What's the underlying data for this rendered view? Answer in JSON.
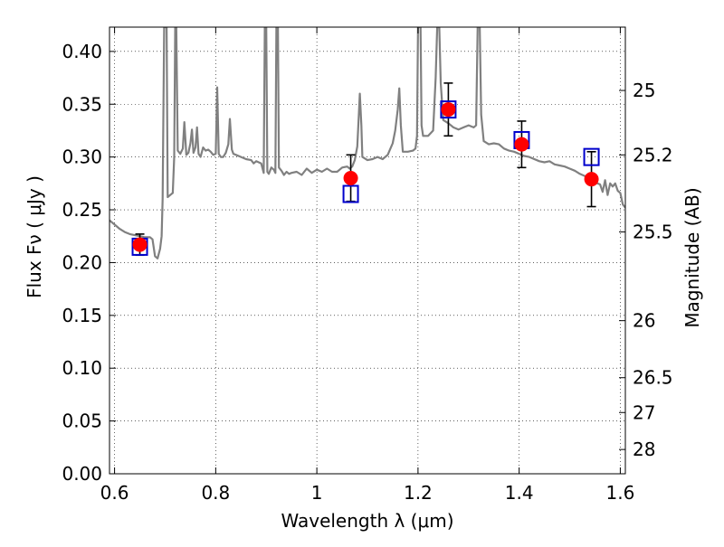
{
  "chart_data": {
    "type": "scatter",
    "title": "",
    "xlabel": "Wavelength  λ (μm)",
    "ylabel": "Flux  Fν  ( μJy )",
    "y2label": "Magnitude (AB)",
    "xlim": [
      0.59,
      1.61
    ],
    "ylim": [
      0.0,
      0.423
    ],
    "xticks": [
      0.6,
      0.8,
      1.0,
      1.2,
      1.4,
      1.6
    ],
    "xticklabels": [
      "0.6",
      "0.8",
      "1",
      "1.2",
      "1.4",
      "1.6"
    ],
    "yticks": [
      0.0,
      0.05,
      0.1,
      0.15,
      0.2,
      0.25,
      0.3,
      0.35,
      0.4
    ],
    "yticklabels": [
      "0.00",
      "0.05",
      "0.10",
      "0.15",
      "0.20",
      "0.25",
      "0.30",
      "0.35",
      "0.40"
    ],
    "y2ticks": [
      {
        "label": "25",
        "flux": 0.363
      },
      {
        "label": "25.2",
        "flux": 0.302
      },
      {
        "label": "25.5",
        "flux": 0.229
      },
      {
        "label": "26",
        "flux": 0.145
      },
      {
        "label": "26.5",
        "flux": 0.091
      },
      {
        "label": "27",
        "flux": 0.058
      },
      {
        "label": "28",
        "flux": 0.023
      }
    ],
    "grid": true,
    "observed": {
      "color": "#ff0000",
      "points": [
        {
          "x": 0.65,
          "y": 0.217,
          "err": 0.01
        },
        {
          "x": 1.067,
          "y": 0.28,
          "err": 0.022
        },
        {
          "x": 1.26,
          "y": 0.345,
          "err": 0.025
        },
        {
          "x": 1.405,
          "y": 0.312,
          "err": 0.022
        },
        {
          "x": 1.543,
          "y": 0.279,
          "err": 0.026
        }
      ]
    },
    "model": {
      "color": "#0000cc",
      "points": [
        {
          "x": 0.65,
          "y": 0.215
        },
        {
          "x": 1.067,
          "y": 0.265
        },
        {
          "x": 1.26,
          "y": 0.345
        },
        {
          "x": 1.405,
          "y": 0.316
        },
        {
          "x": 1.543,
          "y": 0.3
        }
      ]
    },
    "spectrum": {
      "color": "#808080",
      "points": [
        [
          0.59,
          0.24
        ],
        [
          0.6,
          0.236
        ],
        [
          0.61,
          0.232
        ],
        [
          0.62,
          0.229
        ],
        [
          0.63,
          0.227
        ],
        [
          0.64,
          0.226
        ],
        [
          0.65,
          0.225
        ],
        [
          0.66,
          0.224
        ],
        [
          0.67,
          0.224
        ],
        [
          0.675,
          0.222
        ],
        [
          0.68,
          0.206
        ],
        [
          0.685,
          0.204
        ],
        [
          0.69,
          0.213
        ],
        [
          0.693,
          0.225
        ],
        [
          0.695,
          0.26
        ],
        [
          0.698,
          0.423
        ],
        [
          0.703,
          0.423
        ],
        [
          0.705,
          0.262
        ],
        [
          0.71,
          0.264
        ],
        [
          0.715,
          0.266
        ],
        [
          0.718,
          0.3
        ],
        [
          0.72,
          0.423
        ],
        [
          0.722,
          0.423
        ],
        [
          0.725,
          0.306
        ],
        [
          0.73,
          0.303
        ],
        [
          0.735,
          0.308
        ],
        [
          0.738,
          0.333
        ],
        [
          0.742,
          0.302
        ],
        [
          0.746,
          0.304
        ],
        [
          0.75,
          0.313
        ],
        [
          0.753,
          0.326
        ],
        [
          0.756,
          0.304
        ],
        [
          0.76,
          0.309
        ],
        [
          0.763,
          0.328
        ],
        [
          0.766,
          0.303
        ],
        [
          0.77,
          0.3
        ],
        [
          0.775,
          0.309
        ],
        [
          0.78,
          0.306
        ],
        [
          0.785,
          0.307
        ],
        [
          0.79,
          0.305
        ],
        [
          0.795,
          0.302
        ],
        [
          0.8,
          0.303
        ],
        [
          0.803,
          0.366
        ],
        [
          0.806,
          0.303
        ],
        [
          0.81,
          0.3
        ],
        [
          0.815,
          0.3
        ],
        [
          0.82,
          0.304
        ],
        [
          0.825,
          0.312
        ],
        [
          0.828,
          0.336
        ],
        [
          0.832,
          0.307
        ],
        [
          0.835,
          0.303
        ],
        [
          0.84,
          0.302
        ],
        [
          0.85,
          0.3
        ],
        [
          0.86,
          0.298
        ],
        [
          0.87,
          0.297
        ],
        [
          0.875,
          0.294
        ],
        [
          0.88,
          0.296
        ],
        [
          0.89,
          0.294
        ],
        [
          0.895,
          0.285
        ],
        [
          0.897,
          0.423
        ],
        [
          0.9,
          0.423
        ],
        [
          0.902,
          0.286
        ],
        [
          0.905,
          0.284
        ],
        [
          0.91,
          0.29
        ],
        [
          0.915,
          0.288
        ],
        [
          0.918,
          0.285
        ],
        [
          0.92,
          0.423
        ],
        [
          0.923,
          0.423
        ],
        [
          0.925,
          0.29
        ],
        [
          0.93,
          0.287
        ],
        [
          0.935,
          0.283
        ],
        [
          0.94,
          0.286
        ],
        [
          0.945,
          0.284
        ],
        [
          0.95,
          0.285
        ],
        [
          0.96,
          0.286
        ],
        [
          0.97,
          0.283
        ],
        [
          0.98,
          0.289
        ],
        [
          0.99,
          0.285
        ],
        [
          1.0,
          0.288
        ],
        [
          1.01,
          0.286
        ],
        [
          1.02,
          0.289
        ],
        [
          1.03,
          0.286
        ],
        [
          1.04,
          0.286
        ],
        [
          1.05,
          0.29
        ],
        [
          1.06,
          0.291
        ],
        [
          1.065,
          0.289
        ],
        [
          1.07,
          0.291
        ],
        [
          1.075,
          0.297
        ],
        [
          1.08,
          0.31
        ],
        [
          1.083,
          0.34
        ],
        [
          1.085,
          0.36
        ],
        [
          1.088,
          0.33
        ],
        [
          1.09,
          0.3
        ],
        [
          1.1,
          0.297
        ],
        [
          1.11,
          0.298
        ],
        [
          1.12,
          0.3
        ],
        [
          1.13,
          0.298
        ],
        [
          1.14,
          0.302
        ],
        [
          1.15,
          0.313
        ],
        [
          1.155,
          0.325
        ],
        [
          1.16,
          0.345
        ],
        [
          1.163,
          0.365
        ],
        [
          1.166,
          0.33
        ],
        [
          1.17,
          0.305
        ],
        [
          1.18,
          0.305
        ],
        [
          1.19,
          0.306
        ],
        [
          1.195,
          0.308
        ],
        [
          1.198,
          0.32
        ],
        [
          1.2,
          0.423
        ],
        [
          1.205,
          0.423
        ],
        [
          1.207,
          0.33
        ],
        [
          1.21,
          0.32
        ],
        [
          1.22,
          0.32
        ],
        [
          1.23,
          0.325
        ],
        [
          1.235,
          0.375
        ],
        [
          1.238,
          0.423
        ],
        [
          1.242,
          0.423
        ],
        [
          1.245,
          0.37
        ],
        [
          1.25,
          0.335
        ],
        [
          1.26,
          0.332
        ],
        [
          1.27,
          0.328
        ],
        [
          1.28,
          0.326
        ],
        [
          1.29,
          0.328
        ],
        [
          1.3,
          0.33
        ],
        [
          1.31,
          0.328
        ],
        [
          1.315,
          0.33
        ],
        [
          1.318,
          0.423
        ],
        [
          1.322,
          0.423
        ],
        [
          1.325,
          0.34
        ],
        [
          1.33,
          0.315
        ],
        [
          1.34,
          0.312
        ],
        [
          1.35,
          0.313
        ],
        [
          1.36,
          0.312
        ],
        [
          1.37,
          0.308
        ],
        [
          1.38,
          0.306
        ],
        [
          1.39,
          0.305
        ],
        [
          1.4,
          0.303
        ],
        [
          1.41,
          0.301
        ],
        [
          1.42,
          0.3
        ],
        [
          1.43,
          0.298
        ],
        [
          1.44,
          0.296
        ],
        [
          1.45,
          0.295
        ],
        [
          1.46,
          0.296
        ],
        [
          1.47,
          0.293
        ],
        [
          1.48,
          0.292
        ],
        [
          1.49,
          0.291
        ],
        [
          1.5,
          0.289
        ],
        [
          1.51,
          0.287
        ],
        [
          1.52,
          0.284
        ],
        [
          1.53,
          0.282
        ],
        [
          1.54,
          0.28
        ],
        [
          1.55,
          0.276
        ],
        [
          1.56,
          0.274
        ],
        [
          1.565,
          0.267
        ],
        [
          1.57,
          0.278
        ],
        [
          1.575,
          0.264
        ],
        [
          1.58,
          0.275
        ],
        [
          1.585,
          0.272
        ],
        [
          1.59,
          0.275
        ],
        [
          1.595,
          0.268
        ],
        [
          1.6,
          0.266
        ],
        [
          1.605,
          0.255
        ],
        [
          1.61,
          0.252
        ]
      ]
    }
  }
}
